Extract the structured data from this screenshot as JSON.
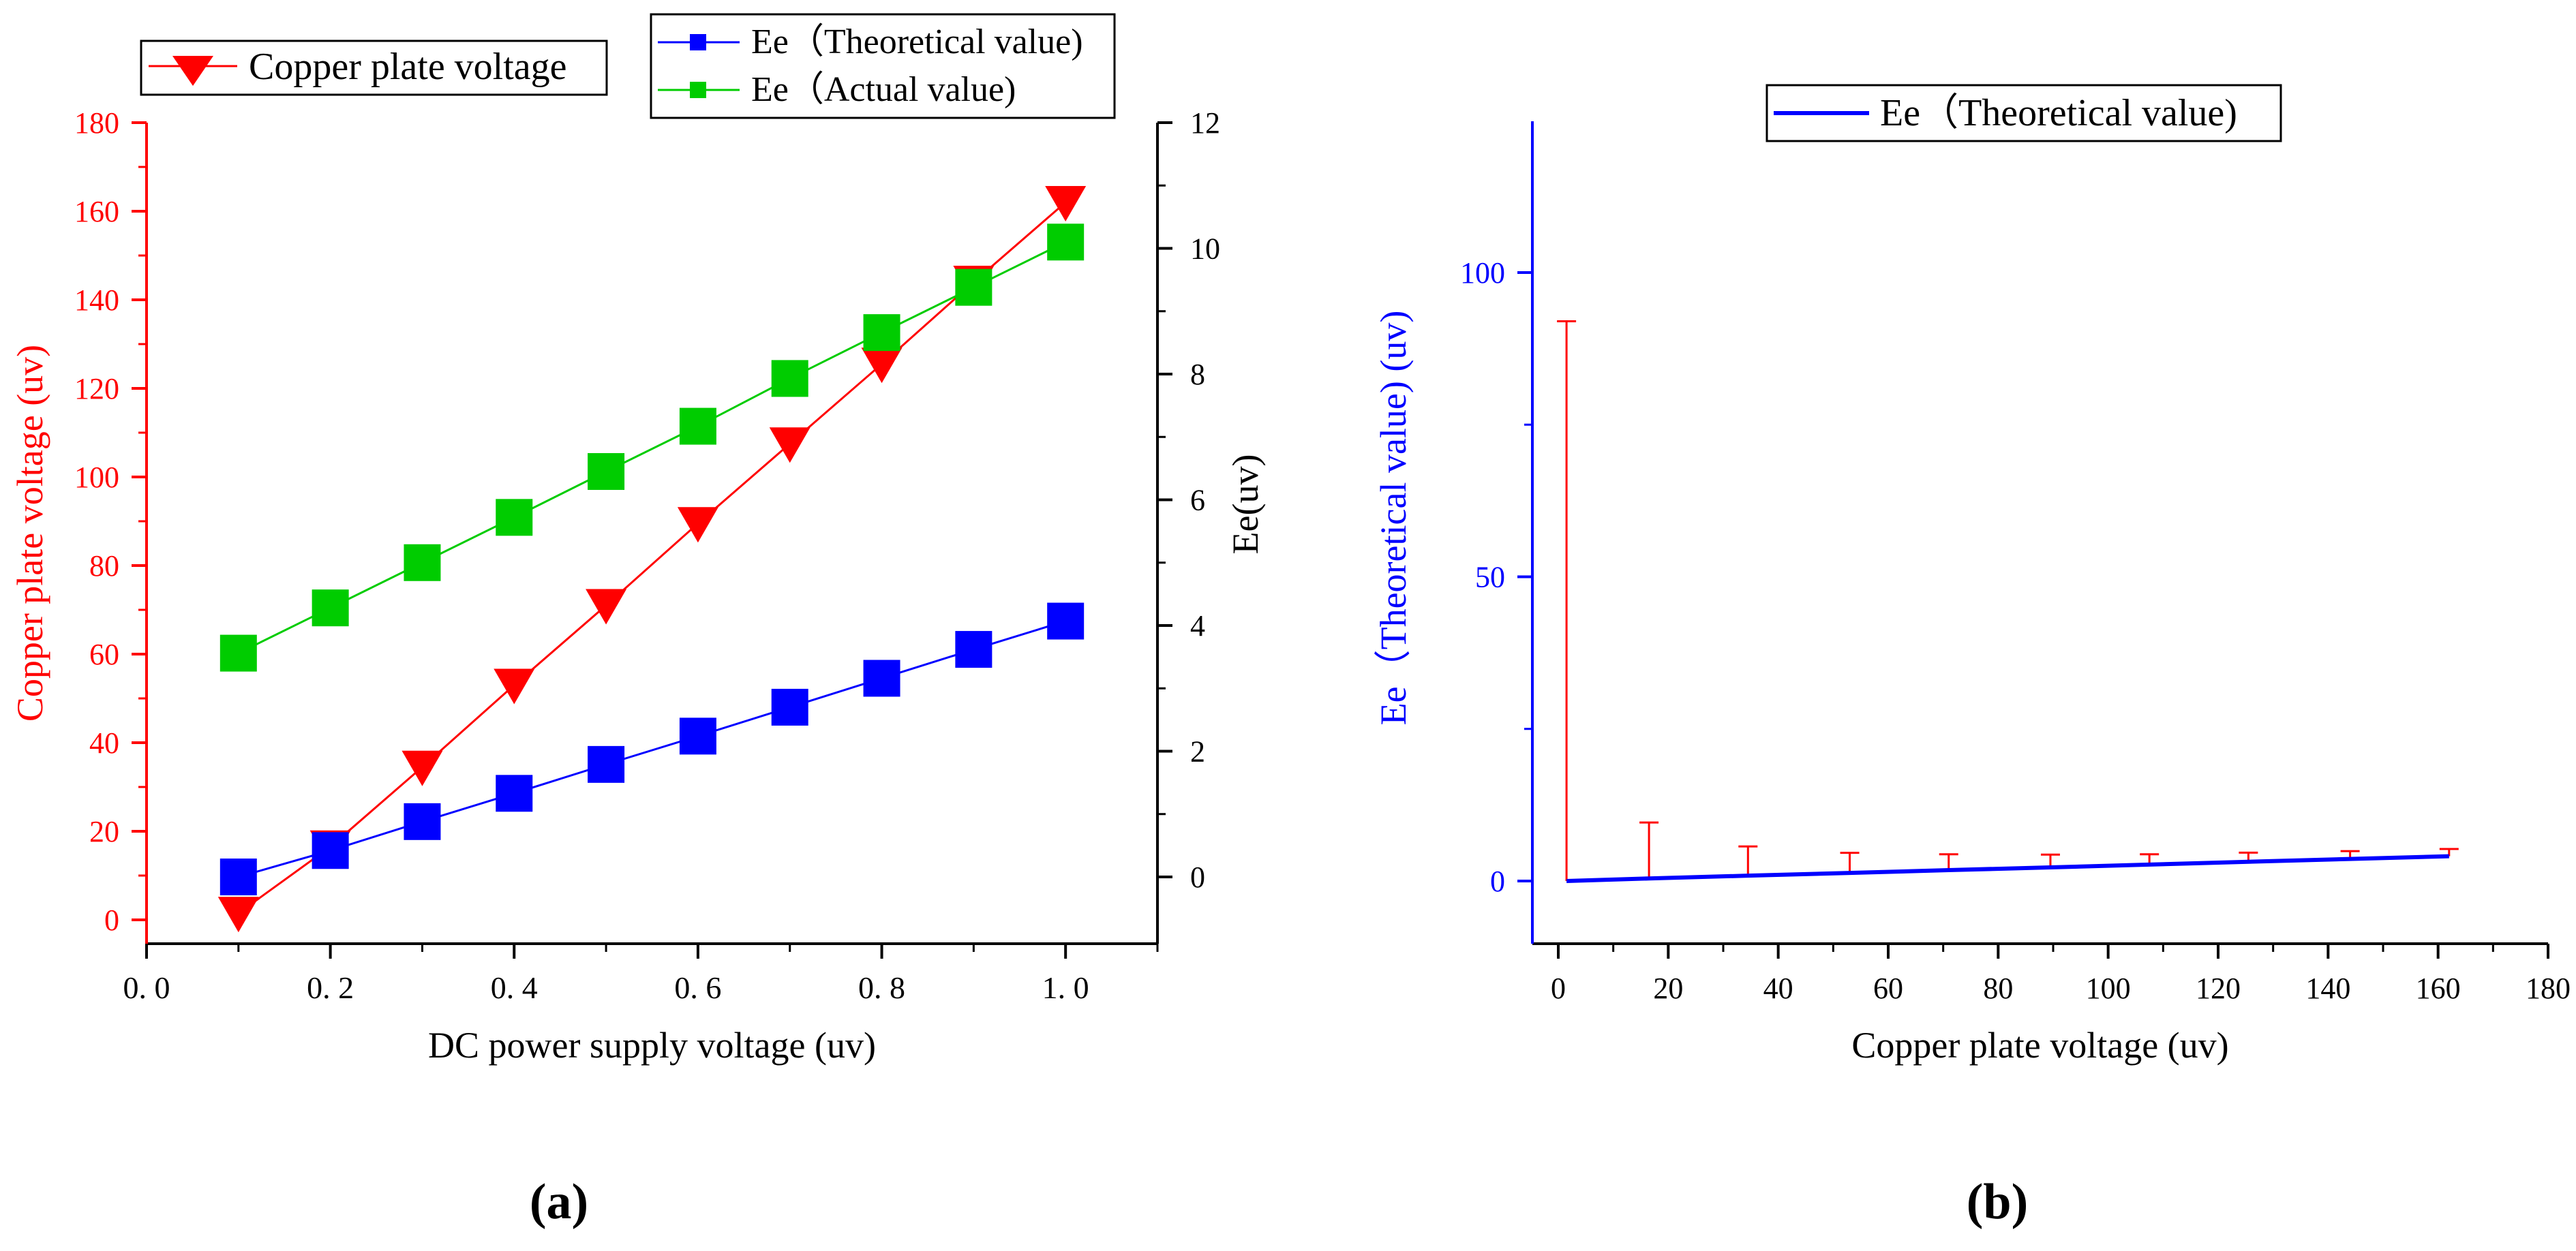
{
  "figure": {
    "panel_labels": [
      "(a)",
      "(b)"
    ]
  },
  "colors": {
    "copper": "#ff0000",
    "theoretical": "#0000ff",
    "actual": "#00cc00",
    "errorbar": "#ff0000",
    "axis_black": "#000000"
  },
  "chart_data": [
    {
      "type": "line",
      "panel": "(a)",
      "title": "",
      "xlabel": "DC power supply voltage (uv)",
      "ylabel_left": "Copper plate voltage (uv)",
      "ylabel_right": "Ee(uv)",
      "x_ticks": [
        "0. 0",
        "0. 2",
        "0. 4",
        "0. 6",
        "0. 8",
        "1. 0"
      ],
      "y_left_ticks": [
        "0",
        "20",
        "40",
        "60",
        "80",
        "100",
        "120",
        "140",
        "160",
        "180"
      ],
      "y_right_ticks": [
        "0",
        "2",
        "4",
        "6",
        "8",
        "10",
        "12"
      ],
      "xlim": [
        0.0,
        1.1
      ],
      "ylim_left": [
        -5,
        180
      ],
      "ylim_right": [
        -1.1,
        12
      ],
      "x": [
        0.1,
        0.2,
        0.3,
        0.4,
        0.5,
        0.6,
        0.7,
        0.8,
        0.9,
        1.0
      ],
      "series": [
        {
          "name": "Copper plate voltage",
          "axis": "left",
          "marker": "triangle-down",
          "color": "#ff0000",
          "values": [
            1.5,
            16.5,
            34.5,
            53,
            71,
            89.5,
            107.5,
            125.5,
            144,
            162
          ]
        },
        {
          "name": "Ee（Theoretical value)",
          "axis": "right",
          "marker": "square",
          "color": "#0000ff",
          "values": [
            0.0,
            0.42,
            0.88,
            1.33,
            1.79,
            2.24,
            2.7,
            3.16,
            3.62,
            4.07
          ]
        },
        {
          "name": "Ee（Actual value)",
          "axis": "right",
          "marker": "square",
          "color": "#00cc00",
          "values": [
            3.56,
            4.28,
            5.0,
            5.72,
            6.45,
            7.17,
            7.93,
            8.66,
            9.38,
            10.1
          ]
        }
      ],
      "legend": [
        "top-left",
        "top-right"
      ]
    },
    {
      "type": "line",
      "panel": "(b)",
      "title": "",
      "xlabel": "Copper plate voltage (uv)",
      "ylabel": "Ee（Theoretical value) (uv)",
      "x_ticks": [
        "0",
        "20",
        "40",
        "60",
        "80",
        "100",
        "120",
        "140",
        "160",
        "180"
      ],
      "y_ticks": [
        "0",
        "50",
        "100"
      ],
      "xlim": [
        -5,
        180
      ],
      "ylim": [
        -10,
        125
      ],
      "series": [
        {
          "name": "Ee（Theoretical value)",
          "color": "#0000ff",
          "x": [
            1.5,
            16.5,
            34.5,
            53,
            71,
            89.5,
            107.5,
            125.5,
            144,
            162
          ],
          "y": [
            0.0,
            0.42,
            0.88,
            1.33,
            1.79,
            2.24,
            2.7,
            3.16,
            3.62,
            4.07
          ],
          "error_up": [
            92,
            9.2,
            4.8,
            3.3,
            2.6,
            2.1,
            1.7,
            1.5,
            1.3,
            1.2
          ]
        }
      ],
      "legend": "top-center"
    }
  ]
}
